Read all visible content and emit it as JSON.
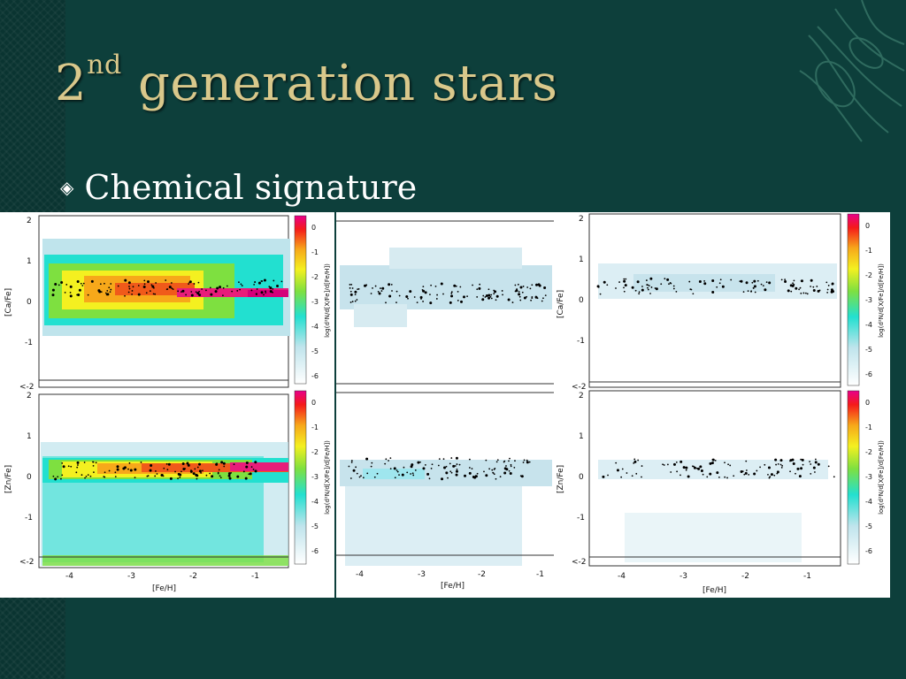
{
  "slide": {
    "title_main": "2",
    "title_sup": "nd",
    "title_rest": " generation stars",
    "bullet_text": "Chemical signature",
    "bullet_icon": "diamond-bullet-icon",
    "colors": {
      "background": "#0d3f3b",
      "title": "#d9c88b",
      "text": "#ffffff"
    }
  },
  "chart_data": [
    {
      "type": "heatmap",
      "panel": "left-top",
      "xlabel": "",
      "ylabel": "[Ca/Fe]",
      "yticks": [
        "2",
        "1",
        "0",
        "-1",
        "<-2"
      ],
      "xticks": [],
      "colorbar": {
        "label": "log(d²N/d[X/Fe]/d[Fe/H])",
        "ticks": [
          "0",
          "-1",
          "-2",
          "-3",
          "-4",
          "-5",
          "-6"
        ]
      }
    },
    {
      "type": "heatmap",
      "panel": "left-bottom",
      "xlabel": "[Fe/H]",
      "ylabel": "[Zn/Fe]",
      "yticks": [
        "2",
        "1",
        "0",
        "-1",
        "<-2"
      ],
      "xticks": [
        "-4",
        "-3",
        "-2",
        "-1"
      ],
      "colorbar": {
        "label": "log(d²N/d[X/Fe]/d[Fe/H])",
        "ticks": [
          "0",
          "-1",
          "-2",
          "-3",
          "-4",
          "-5",
          "-6"
        ]
      }
    },
    {
      "type": "heatmap",
      "panel": "middle-top",
      "ylabel": "",
      "xlabel": "",
      "xticks": []
    },
    {
      "type": "heatmap",
      "panel": "middle-bottom",
      "ylabel": "",
      "xlabel": "[Fe/H]",
      "xticks": [
        "-4",
        "-3",
        "-2",
        "-1"
      ]
    },
    {
      "type": "heatmap",
      "panel": "right-top",
      "xlabel": "",
      "ylabel": "[Ca/Fe]",
      "yticks": [
        "2",
        "1",
        "0",
        "-1",
        "<-2"
      ],
      "xticks": [],
      "colorbar": {
        "label": "log(d²N/d[X/Fe]/d[Fe/H])",
        "ticks": [
          "0",
          "-1",
          "-2",
          "-3",
          "-4",
          "-5",
          "-6"
        ]
      }
    },
    {
      "type": "heatmap",
      "panel": "right-bottom",
      "xlabel": "[Fe/H]",
      "ylabel": "[Zn/Fe]",
      "yticks": [
        "2",
        "1",
        "0",
        "-1",
        "<-2"
      ],
      "xticks": [
        "-4",
        "-3",
        "-2",
        "-1"
      ],
      "colorbar": {
        "label": "log(d²N/d[X/Fe]/d[Fe/H])",
        "ticks": [
          "0",
          "-1",
          "-2",
          "-3",
          "-4",
          "-5",
          "-6"
        ]
      }
    }
  ]
}
